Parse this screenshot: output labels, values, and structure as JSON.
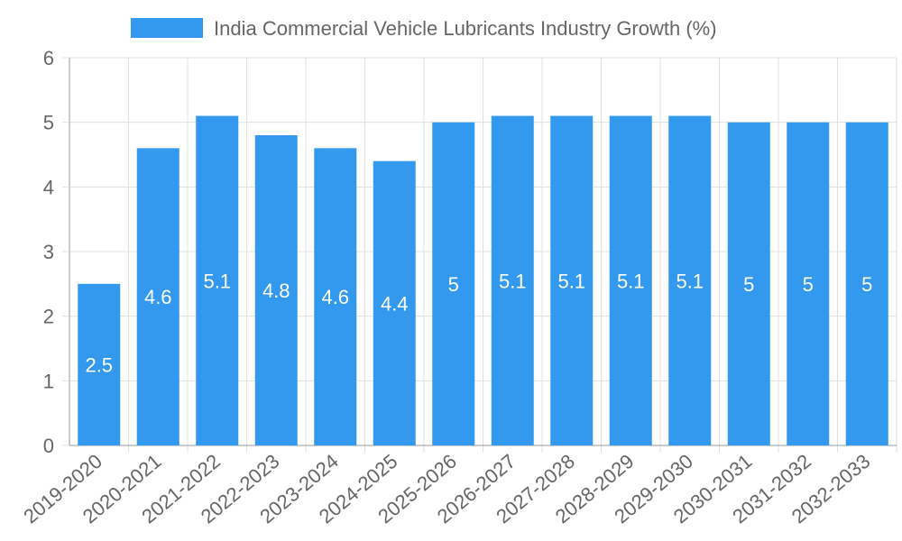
{
  "chart_data": {
    "type": "bar",
    "title": "",
    "legend": {
      "label": "India Commercial Vehicle Lubricants Industry Growth (%)",
      "position": "top"
    },
    "categories": [
      "2019-2020",
      "2020-2021",
      "2021-2022",
      "2022-2023",
      "2023-2024",
      "2024-2025",
      "2025-2026",
      "2026-2027",
      "2027-2028",
      "2028-2029",
      "2029-2030",
      "2030-2031",
      "2031-2032",
      "2032-2033"
    ],
    "series": [
      {
        "name": "India Commercial Vehicle Lubricants Industry Growth (%)",
        "values": [
          2.5,
          4.6,
          5.1,
          4.8,
          4.6,
          4.4,
          5,
          5.1,
          5.1,
          5.1,
          5.1,
          5,
          5,
          5
        ]
      }
    ],
    "data_labels": [
      "2.5",
      "4.6",
      "5.1",
      "4.8",
      "4.6",
      "4.4",
      "5",
      "5.1",
      "5.1",
      "5.1",
      "5.1",
      "5",
      "5",
      "5"
    ],
    "y_ticks": [
      "0",
      "1",
      "2",
      "3",
      "4",
      "5",
      "6"
    ],
    "ylim": [
      0,
      6
    ],
    "xlabel": "",
    "ylabel": "",
    "grid": true,
    "colors": {
      "bar": "#3399ee",
      "grid": "#e0e0e0",
      "axis": "#999999",
      "text": "#666666",
      "label": "#ffffff"
    }
  }
}
